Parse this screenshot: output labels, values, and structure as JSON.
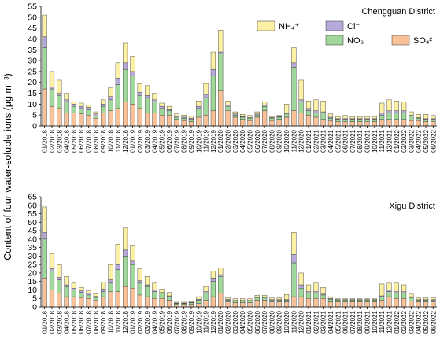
{
  "chart_data": {
    "type": "bar",
    "stacked": true,
    "ylabel": "Content of four water-soluble ions (μg m⁻³)",
    "categories": [
      "01/2018",
      "02/2018",
      "03/2018",
      "04/2018",
      "05/2018",
      "06/2018",
      "07/2018",
      "08/2018",
      "09/2018",
      "10/2018",
      "11/2018",
      "12/2018",
      "01/2019",
      "02/2019",
      "03/2019",
      "04/2019",
      "05/2019",
      "06/2019",
      "07/2019",
      "08/2019",
      "09/2019",
      "10/2019",
      "11/2019",
      "12/2019",
      "01/2020",
      "02/2020",
      "03/2020",
      "04/2020",
      "05/2020",
      "06/2020",
      "07/2020",
      "08/2020",
      "09/2020",
      "10/2020",
      "11/2020",
      "12/2020",
      "01/2021",
      "02/2021",
      "03/2021",
      "04/2021",
      "05/2021",
      "06/2021",
      "07/2021",
      "08/2021",
      "09/2021",
      "10/2021",
      "11/2021",
      "12/2021",
      "01/2022",
      "02/2022",
      "03/2022",
      "04/2022",
      "05/2022",
      "06/2022"
    ],
    "legend": [
      {
        "key": "NH4",
        "label": "NH₄⁺",
        "color": "#fbf0a3"
      },
      {
        "key": "Cl",
        "label": "Cl⁻",
        "color": "#b7a9dc"
      },
      {
        "key": "NO3",
        "label": "NO₃⁻",
        "color": "#9fd89a"
      },
      {
        "key": "SO4",
        "label": "SO₄²⁻",
        "color": "#f9c197"
      }
    ],
    "panels": [
      {
        "title": "Chengguan District",
        "ylim": [
          0,
          55
        ],
        "yticks": [
          0,
          5,
          10,
          15,
          20,
          25,
          30,
          35,
          40,
          45,
          50,
          55
        ],
        "series": [
          {
            "name": "SO₄²⁻",
            "values": [
              17,
              9,
              8,
              6,
              6,
              5.5,
              5,
              3.5,
              6,
              7,
              8,
              11,
              10,
              8,
              6,
              6,
              5,
              5,
              3,
              2.5,
              2,
              4,
              5,
              7,
              16,
              7,
              4,
              3,
              2.5,
              4,
              7,
              2.5,
              3,
              4,
              7,
              6,
              5,
              4,
              3,
              2.5,
              2,
              2,
              2,
              2,
              2,
              2,
              3,
              3,
              3,
              3,
              2.5,
              2.5,
              2,
              2
            ]
          },
          {
            "name": "NO₃⁻",
            "values": [
              19,
              8,
              6,
              5,
              3,
              2.5,
              2.5,
              1,
              3,
              5,
              11,
              15,
              13,
              6,
              7,
              5,
              3,
              2,
              1,
              1,
              1,
              4,
              8,
              16,
              17,
              2,
              1,
              1,
              1,
              1,
              2,
              1,
              1,
              1.5,
              20,
              5,
              2,
              2,
              3,
              1,
              1,
              1,
              1,
              1,
              1,
              1,
              2,
              3,
              3,
              3,
              2,
              1,
              1,
              1
            ]
          },
          {
            "name": "Cl⁻",
            "values": [
              5,
              1,
              1,
              1,
              1,
              1,
              1,
              1,
              1,
              1.5,
              3,
              3,
              2,
              1.5,
              1,
              1,
              1,
              0.5,
              0.5,
              0.5,
              0.5,
              1,
              1.5,
              3,
              1,
              0.5,
              0.5,
              0.3,
              0.3,
              0.5,
              0.5,
              0.3,
              0.3,
              0.5,
              2,
              1,
              1,
              1,
              0.5,
              0.5,
              0.3,
              0.3,
              0.3,
              0.3,
              0.3,
              0.3,
              1,
              1,
              1,
              1,
              0.5,
              0.3,
              0.3,
              0.3
            ]
          },
          {
            "name": "NH₄⁺",
            "values": [
              10,
              7,
              6,
              3,
              1,
              1.5,
              1,
              1,
              2,
              4,
              7,
              9,
              7,
              4,
              4.5,
              3,
              1.5,
              1.5,
              1,
              1,
              1,
              2.5,
              5,
              8,
              10,
              2,
              1,
              1,
              1,
              1,
              1.5,
              0.5,
              0.5,
              4,
              7,
              9,
              3.5,
              5,
              5,
              1.5,
              1,
              1.5,
              1,
              1,
              1,
              1,
              4.5,
              5,
              4.5,
              4,
              1.5,
              1.5,
              2,
              1.5
            ]
          }
        ]
      },
      {
        "title": "Xigu District",
        "ylim": [
          0,
          65
        ],
        "yticks": [
          0,
          5,
          10,
          15,
          20,
          25,
          30,
          35,
          40,
          45,
          50,
          55,
          60,
          65
        ],
        "series": [
          {
            "name": "SO₄²⁻",
            "values": [
              17,
              10,
              8,
              6,
              6,
              5.5,
              5,
              4,
              6,
              9,
              9,
              12,
              11,
              7,
              6,
              5,
              5,
              4,
              1.5,
              1.5,
              1.5,
              2,
              4,
              6,
              8,
              3,
              2.5,
              2.5,
              2.5,
              4,
              4,
              3,
              3,
              3,
              6,
              6,
              5,
              5,
              5,
              3,
              3,
              3,
              3,
              3,
              3,
              3,
              4,
              6,
              5,
              5,
              3.5,
              3,
              3,
              3
            ]
          },
          {
            "name": "NO₃⁻",
            "values": [
              23,
              11,
              8,
              6,
              4,
              3,
              2,
              1.5,
              3,
              5,
              13,
              18,
              14,
              7,
              6,
              4,
              3,
              2,
              0.5,
              0.5,
              1,
              2,
              4,
              9,
              10,
              1,
              1,
              1,
              1,
              1.5,
              1.5,
              1,
              1,
              1,
              20,
              5,
              3,
              3,
              2,
              1.5,
              1,
              1,
              1,
              1,
              1,
              1,
              2,
              3,
              3,
              3,
              2,
              1,
              1,
              1
            ]
          },
          {
            "name": "Cl⁻",
            "values": [
              4,
              1.5,
              1.5,
              1,
              1,
              1,
              1,
              0.7,
              1.5,
              2,
              3,
              3.5,
              2,
              1.5,
              1,
              1,
              0.5,
              0.5,
              0.3,
              0.3,
              0.3,
              0.5,
              1,
              2,
              1,
              0.5,
              0.3,
              0.3,
              0.3,
              0.3,
              0.3,
              0.3,
              0.3,
              0.3,
              5,
              2,
              1,
              1,
              0.5,
              0.5,
              0.3,
              0.3,
              0.3,
              0.3,
              0.3,
              0.3,
              0.5,
              1,
              1,
              1,
              0.5,
              0.3,
              0.3,
              0.3
            ]
          },
          {
            "name": "NH₄⁺",
            "values": [
              15,
              9,
              7.5,
              5,
              3,
              2,
              1.5,
              1.5,
              4,
              9,
              12,
              13,
              9,
              7,
              5,
              4,
              2,
              2,
              0.5,
              0.5,
              0.5,
              1.5,
              3,
              4,
              4,
              1,
              1,
              1,
              1,
              1,
              1,
              1,
              1,
              3,
              13,
              7,
              4,
              5,
              4,
              1,
              0.5,
              0.5,
              0.5,
              0.5,
              0.5,
              0.5,
              7,
              4,
              5,
              4,
              1.5,
              1,
              1,
              1
            ]
          }
        ]
      }
    ]
  }
}
